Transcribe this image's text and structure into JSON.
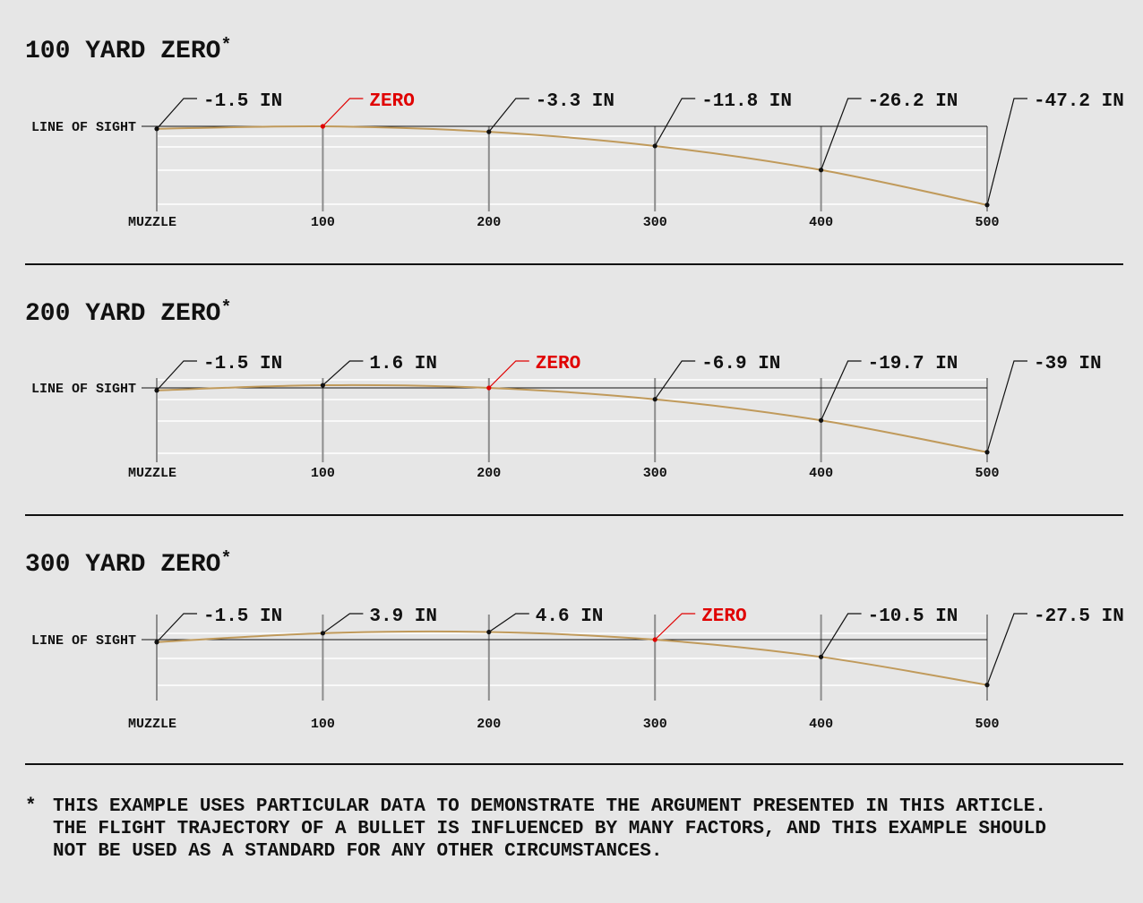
{
  "colors": {
    "background": "#e6e6e6",
    "trajectory": "#c09a5b",
    "zero": "#e00000",
    "ink": "#111111",
    "grid": "#ffffff",
    "tick": "#8c8c8c"
  },
  "shared": {
    "line_of_sight_label": "LINE OF SIGHT",
    "x_tick_labels": [
      "MUZZLE",
      "100",
      "200",
      "300",
      "400",
      "500"
    ],
    "title_suffix": "*"
  },
  "chart_data": [
    {
      "type": "line",
      "title": "100 YARD ZERO",
      "x": [
        0,
        100,
        200,
        300,
        400,
        500
      ],
      "y": [
        -1.5,
        0,
        -3.3,
        -11.8,
        -26.2,
        -47.2
      ],
      "point_labels": [
        "-1.5 IN",
        "ZERO",
        "-3.3 IN",
        "-11.8 IN",
        "-26.2 IN",
        "-47.2 IN"
      ],
      "zero_index": 1
    },
    {
      "type": "line",
      "title": "200 YARD ZERO",
      "x": [
        0,
        100,
        200,
        300,
        400,
        500
      ],
      "y": [
        -1.5,
        1.6,
        0,
        -6.9,
        -19.7,
        -39
      ],
      "point_labels": [
        "-1.5 IN",
        "1.6 IN",
        "ZERO",
        "-6.9 IN",
        "-19.7 IN",
        "-39 IN"
      ],
      "zero_index": 2
    },
    {
      "type": "line",
      "title": "300 YARD ZERO",
      "x": [
        0,
        100,
        200,
        300,
        400,
        500
      ],
      "y": [
        -1.5,
        3.9,
        4.6,
        0,
        -10.5,
        -27.5
      ],
      "point_labels": [
        "-1.5 IN",
        "3.9 IN",
        "4.6 IN",
        "ZERO",
        "-10.5 IN",
        "-27.5 IN"
      ],
      "zero_index": 3
    }
  ],
  "footnote": {
    "star": "*",
    "lines": [
      "THIS EXAMPLE USES PARTICULAR DATA TO DEMONSTRATE THE ARGUMENT PRESENTED IN THIS ARTICLE.",
      "THE FLIGHT TRAJECTORY OF A BULLET IS INFLUENCED BY MANY FACTORS, AND THIS EXAMPLE SHOULD",
      "NOT BE USED AS A STANDARD FOR ANY OTHER CIRCUMSTANCES."
    ]
  }
}
